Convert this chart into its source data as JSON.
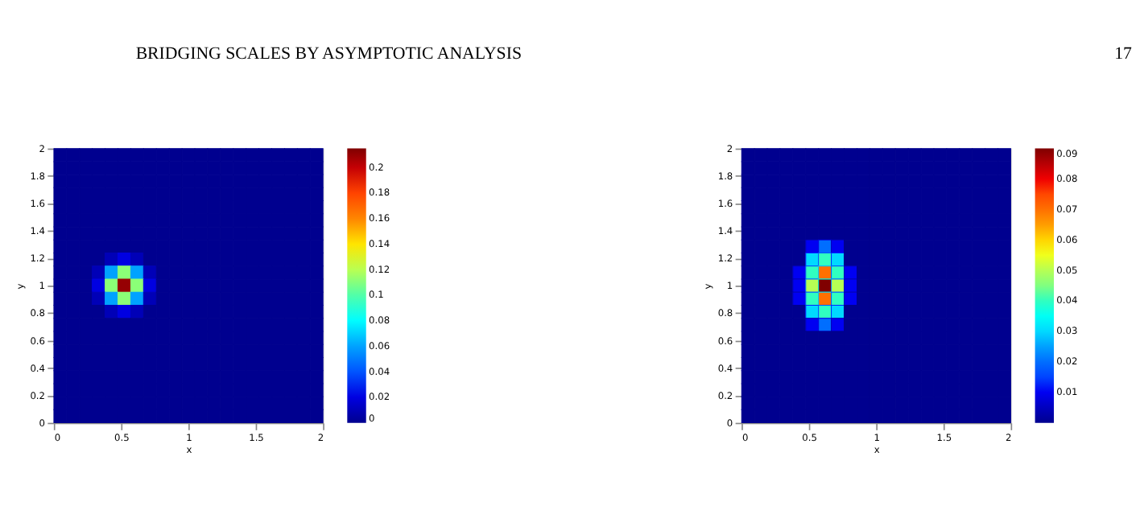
{
  "chart_data": [
    {
      "type": "heatmap",
      "annotations": [
        "BRIDGING SCALES BY ASYMPTOTIC ANALYSIS"
      ],
      "xlabel": "x",
      "ylabel": "y",
      "xlim": [
        0,
        2
      ],
      "ylim": [
        0,
        2
      ],
      "xticks": [
        0,
        0.5,
        1,
        1.5,
        2
      ],
      "yticks": [
        0,
        0.2,
        0.4,
        0.6,
        0.8,
        1,
        1.2,
        1.4,
        1.6,
        1.8,
        2
      ],
      "clim": [
        0,
        0.215
      ],
      "cticks": [
        0,
        0.02,
        0.04,
        0.06,
        0.08,
        0.1,
        0.12,
        0.14,
        0.16,
        0.18,
        0.2
      ],
      "x": [
        0.048,
        0.143,
        0.238,
        0.333,
        0.429,
        0.524,
        0.619,
        0.714,
        0.81,
        0.905,
        1,
        1.095,
        1.19,
        1.286,
        1.381,
        1.476,
        1.571,
        1.667,
        1.762,
        1.857,
        1.952
      ],
      "y": [
        1.952,
        1.857,
        1.762,
        1.667,
        1.571,
        1.476,
        1.381,
        1.286,
        1.19,
        1.095,
        1,
        0.905,
        0.81,
        0.714,
        0.619,
        0.524,
        0.429,
        0.333,
        0.238,
        0.143,
        0.048
      ],
      "cells": [
        [
          0,
          0,
          0,
          0,
          0,
          0,
          0,
          0,
          0,
          0,
          0,
          0,
          0,
          0,
          0,
          0,
          0,
          0,
          0,
          0,
          0
        ],
        [
          0,
          0,
          0,
          0,
          0,
          0,
          0,
          0,
          0,
          0,
          0,
          0,
          0,
          0,
          0,
          0,
          0,
          0,
          0,
          0,
          0
        ],
        [
          0,
          0,
          0,
          0,
          0,
          0,
          0,
          0,
          0,
          0,
          0,
          0,
          0,
          0,
          0,
          0,
          0,
          0,
          0,
          0,
          0
        ],
        [
          0,
          0,
          0,
          0,
          0,
          0,
          0,
          0,
          0,
          0,
          0,
          0,
          0,
          0,
          0,
          0,
          0,
          0,
          0,
          0,
          0
        ],
        [
          0,
          0,
          0,
          0,
          0,
          0,
          0,
          0,
          0,
          0,
          0,
          0,
          0,
          0,
          0,
          0,
          0,
          0,
          0,
          0,
          0
        ],
        [
          0,
          0,
          0,
          0,
          0,
          0,
          0,
          0,
          0,
          0,
          0,
          0,
          0,
          0,
          0,
          0,
          0,
          0,
          0,
          0,
          0
        ],
        [
          0,
          0,
          0,
          0,
          0,
          0,
          0,
          0,
          0,
          0,
          0,
          0,
          0,
          0,
          0,
          0,
          0,
          0,
          0,
          0,
          0
        ],
        [
          0,
          0,
          0,
          0,
          0,
          0,
          0,
          0,
          0,
          0,
          0,
          0,
          0,
          0,
          0,
          0,
          0,
          0,
          0,
          0,
          0
        ],
        [
          0,
          0,
          0,
          0,
          0.01,
          0.02,
          0.01,
          0,
          0,
          0,
          0,
          0,
          0,
          0,
          0,
          0,
          0,
          0,
          0,
          0,
          0
        ],
        [
          0,
          0,
          0,
          0.01,
          0.06,
          0.11,
          0.06,
          0.01,
          0,
          0,
          0,
          0,
          0,
          0,
          0,
          0,
          0,
          0,
          0,
          0,
          0
        ],
        [
          0,
          0,
          0,
          0.02,
          0.11,
          0.21,
          0.11,
          0.02,
          0,
          0,
          0,
          0,
          0,
          0,
          0,
          0,
          0,
          0,
          0,
          0,
          0
        ],
        [
          0,
          0,
          0,
          0.01,
          0.06,
          0.11,
          0.06,
          0.01,
          0,
          0,
          0,
          0,
          0,
          0,
          0,
          0,
          0,
          0,
          0,
          0,
          0
        ],
        [
          0,
          0,
          0,
          0,
          0.01,
          0.02,
          0.01,
          0,
          0,
          0,
          0,
          0,
          0,
          0,
          0,
          0,
          0,
          0,
          0,
          0,
          0
        ],
        [
          0,
          0,
          0,
          0,
          0,
          0,
          0,
          0,
          0,
          0,
          0,
          0,
          0,
          0,
          0,
          0,
          0,
          0,
          0,
          0,
          0
        ],
        [
          0,
          0,
          0,
          0,
          0,
          0,
          0,
          0,
          0,
          0,
          0,
          0,
          0,
          0,
          0,
          0,
          0,
          0,
          0,
          0,
          0
        ],
        [
          0,
          0,
          0,
          0,
          0,
          0,
          0,
          0,
          0,
          0,
          0,
          0,
          0,
          0,
          0,
          0,
          0,
          0,
          0,
          0,
          0
        ],
        [
          0,
          0,
          0,
          0,
          0,
          0,
          0,
          0,
          0,
          0,
          0,
          0,
          0,
          0,
          0,
          0,
          0,
          0,
          0,
          0,
          0
        ],
        [
          0,
          0,
          0,
          0,
          0,
          0,
          0,
          0,
          0,
          0,
          0,
          0,
          0,
          0,
          0,
          0,
          0,
          0,
          0,
          0,
          0
        ],
        [
          0,
          0,
          0,
          0,
          0,
          0,
          0,
          0,
          0,
          0,
          0,
          0,
          0,
          0,
          0,
          0,
          0,
          0,
          0,
          0,
          0
        ],
        [
          0,
          0,
          0,
          0,
          0,
          0,
          0,
          0,
          0,
          0,
          0,
          0,
          0,
          0,
          0,
          0,
          0,
          0,
          0,
          0,
          0
        ],
        [
          0,
          0,
          0,
          0,
          0,
          0,
          0,
          0,
          0,
          0,
          0,
          0,
          0,
          0,
          0,
          0,
          0,
          0,
          0,
          0,
          0
        ]
      ]
    },
    {
      "type": "heatmap",
      "annotations": [
        "17"
      ],
      "xlabel": "x",
      "ylabel": "y",
      "xlim": [
        0,
        2
      ],
      "ylim": [
        0,
        2
      ],
      "xticks": [
        0,
        0.5,
        1,
        1.5,
        2
      ],
      "yticks": [
        0,
        0.2,
        0.4,
        0.6,
        0.8,
        1,
        1.2,
        1.4,
        1.6,
        1.8,
        2
      ],
      "clim": [
        0,
        0.09
      ],
      "cticks": [
        0.01,
        0.02,
        0.03,
        0.04,
        0.05,
        0.06,
        0.07,
        0.08,
        0.09
      ],
      "x": [
        0.048,
        0.143,
        0.238,
        0.333,
        0.429,
        0.524,
        0.619,
        0.714,
        0.81,
        0.905,
        1,
        1.095,
        1.19,
        1.286,
        1.381,
        1.476,
        1.571,
        1.667,
        1.762,
        1.857,
        1.952
      ],
      "y": [
        1.952,
        1.857,
        1.762,
        1.667,
        1.571,
        1.476,
        1.381,
        1.286,
        1.19,
        1.095,
        1,
        0.905,
        0.81,
        0.714,
        0.619,
        0.524,
        0.429,
        0.333,
        0.238,
        0.143,
        0.048
      ],
      "cells": [
        [
          0,
          0,
          0,
          0,
          0,
          0,
          0,
          0,
          0,
          0,
          0,
          0,
          0,
          0,
          0,
          0,
          0,
          0,
          0,
          0,
          0
        ],
        [
          0,
          0,
          0,
          0,
          0,
          0,
          0,
          0,
          0,
          0,
          0,
          0,
          0,
          0,
          0,
          0,
          0,
          0,
          0,
          0,
          0
        ],
        [
          0,
          0,
          0,
          0,
          0,
          0,
          0,
          0,
          0,
          0,
          0,
          0,
          0,
          0,
          0,
          0,
          0,
          0,
          0,
          0,
          0
        ],
        [
          0,
          0,
          0,
          0,
          0,
          0,
          0,
          0,
          0,
          0,
          0,
          0,
          0,
          0,
          0,
          0,
          0,
          0,
          0,
          0,
          0
        ],
        [
          0,
          0,
          0,
          0,
          0,
          0,
          0,
          0,
          0,
          0,
          0,
          0,
          0,
          0,
          0,
          0,
          0,
          0,
          0,
          0,
          0
        ],
        [
          0,
          0,
          0,
          0,
          0,
          0,
          0,
          0,
          0,
          0,
          0,
          0,
          0,
          0,
          0,
          0,
          0,
          0,
          0,
          0,
          0
        ],
        [
          0,
          0,
          0,
          0,
          0,
          0,
          0,
          0,
          0,
          0,
          0,
          0,
          0,
          0,
          0,
          0,
          0,
          0,
          0,
          0,
          0
        ],
        [
          0,
          0,
          0,
          0,
          0,
          0.01,
          0.02,
          0.01,
          0,
          0,
          0,
          0,
          0,
          0,
          0,
          0,
          0,
          0,
          0,
          0,
          0
        ],
        [
          0,
          0,
          0,
          0,
          0,
          0.03,
          0.04,
          0.03,
          0,
          0,
          0,
          0,
          0,
          0,
          0,
          0,
          0,
          0,
          0,
          0,
          0
        ],
        [
          0,
          0,
          0,
          0,
          0.01,
          0.04,
          0.07,
          0.04,
          0.01,
          0,
          0,
          0,
          0,
          0,
          0,
          0,
          0,
          0,
          0,
          0,
          0
        ],
        [
          0,
          0,
          0,
          0,
          0.01,
          0.05,
          0.09,
          0.05,
          0.01,
          0,
          0,
          0,
          0,
          0,
          0,
          0,
          0,
          0,
          0,
          0,
          0
        ],
        [
          0,
          0,
          0,
          0,
          0.01,
          0.04,
          0.07,
          0.04,
          0.01,
          0,
          0,
          0,
          0,
          0,
          0,
          0,
          0,
          0,
          0,
          0,
          0
        ],
        [
          0,
          0,
          0,
          0,
          0,
          0.03,
          0.04,
          0.03,
          0,
          0,
          0,
          0,
          0,
          0,
          0,
          0,
          0,
          0,
          0,
          0,
          0
        ],
        [
          0,
          0,
          0,
          0,
          0,
          0.01,
          0.02,
          0.01,
          0,
          0,
          0,
          0,
          0,
          0,
          0,
          0,
          0,
          0,
          0,
          0,
          0
        ],
        [
          0,
          0,
          0,
          0,
          0,
          0,
          0,
          0,
          0,
          0,
          0,
          0,
          0,
          0,
          0,
          0,
          0,
          0,
          0,
          0,
          0
        ],
        [
          0,
          0,
          0,
          0,
          0,
          0,
          0,
          0,
          0,
          0,
          0,
          0,
          0,
          0,
          0,
          0,
          0,
          0,
          0,
          0,
          0
        ],
        [
          0,
          0,
          0,
          0,
          0,
          0,
          0,
          0,
          0,
          0,
          0,
          0,
          0,
          0,
          0,
          0,
          0,
          0,
          0,
          0,
          0
        ],
        [
          0,
          0,
          0,
          0,
          0,
          0,
          0,
          0,
          0,
          0,
          0,
          0,
          0,
          0,
          0,
          0,
          0,
          0,
          0,
          0,
          0
        ],
        [
          0,
          0,
          0,
          0,
          0,
          0,
          0,
          0,
          0,
          0,
          0,
          0,
          0,
          0,
          0,
          0,
          0,
          0,
          0,
          0,
          0
        ],
        [
          0,
          0,
          0,
          0,
          0,
          0,
          0,
          0,
          0,
          0,
          0,
          0,
          0,
          0,
          0,
          0,
          0,
          0,
          0,
          0,
          0
        ],
        [
          0,
          0,
          0,
          0,
          0,
          0,
          0,
          0,
          0,
          0,
          0,
          0,
          0,
          0,
          0,
          0,
          0,
          0,
          0,
          0,
          0
        ]
      ]
    }
  ]
}
